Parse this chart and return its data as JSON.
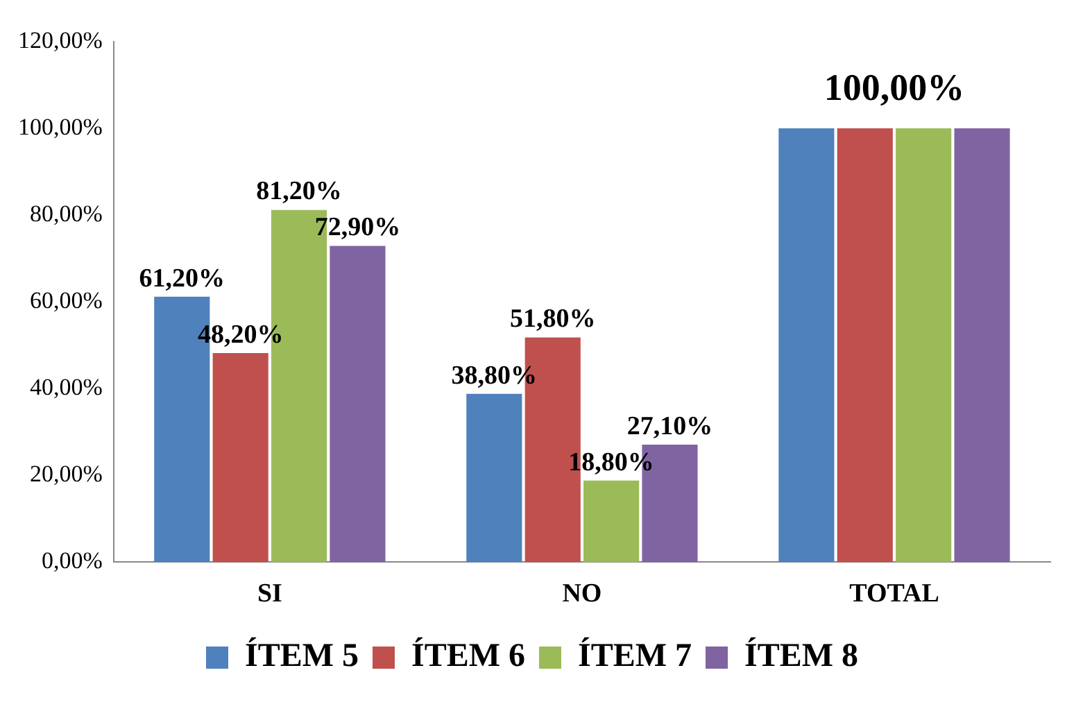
{
  "chart_data": {
    "type": "bar",
    "categories": [
      "SI",
      "NO",
      "TOTAL"
    ],
    "series": [
      {
        "name": "ÍTEM 5",
        "color": "#4f81bd",
        "values": [
          61.2,
          38.8,
          100
        ],
        "value_labels": [
          "61,20%",
          "38,80%",
          null
        ]
      },
      {
        "name": "ÍTEM 6",
        "color": "#c0504d",
        "values": [
          48.2,
          51.8,
          100
        ],
        "value_labels": [
          "48,20%",
          "51,80%",
          null
        ]
      },
      {
        "name": "ÍTEM 7",
        "color": "#9bbb59",
        "values": [
          81.2,
          18.8,
          100
        ],
        "value_labels": [
          "81,20%",
          "18,80%",
          null
        ]
      },
      {
        "name": "ÍTEM 8",
        "color": "#8064a2",
        "values": [
          72.9,
          27.1,
          100
        ],
        "value_labels": [
          "72,90%",
          "27,10%",
          null
        ]
      }
    ],
    "ylim": [
      0,
      120
    ],
    "yticks": [
      {
        "value": 0,
        "label": "0,00%"
      },
      {
        "value": 20,
        "label": "20,00%"
      },
      {
        "value": 40,
        "label": "40,00%"
      },
      {
        "value": 60,
        "label": "60,00%"
      },
      {
        "value": 80,
        "label": "80,00%"
      },
      {
        "value": 100,
        "label": "100,00%"
      },
      {
        "value": 120,
        "label": "120,00%"
      }
    ],
    "annotations": [
      {
        "text": "100,00%",
        "x": "TOTAL",
        "y": 100
      }
    ],
    "grid": false,
    "legend": "bottom"
  }
}
